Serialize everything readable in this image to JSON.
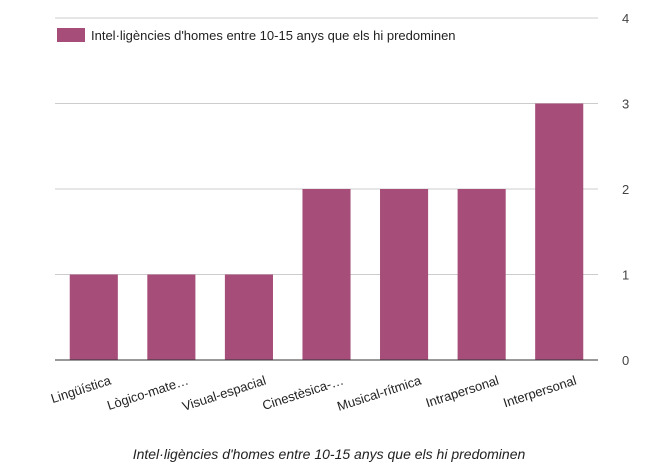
{
  "chart_data": {
    "type": "bar",
    "title": "",
    "categories": [
      "Lingüística",
      "Lògico-mate…",
      "Visual-espacial",
      "Cinestèsica-…",
      "Musical-rítmica",
      "Intrapersonal",
      "Interpersonal"
    ],
    "series": [
      {
        "name": "Intel·ligències d'homes entre 10-15 anys que els hi predominen",
        "color": "#a64d79",
        "values": [
          1,
          1,
          1,
          2,
          2,
          2,
          3
        ]
      }
    ],
    "xlabel": "Intel·ligències d'homes entre 10-15 anys que els hi predominen",
    "ylabel": "",
    "ylim": [
      0,
      4
    ],
    "yticks": [
      0,
      1,
      2,
      3,
      4
    ],
    "y_axis_position": "right",
    "grid": true,
    "legend_position": "top-left"
  }
}
